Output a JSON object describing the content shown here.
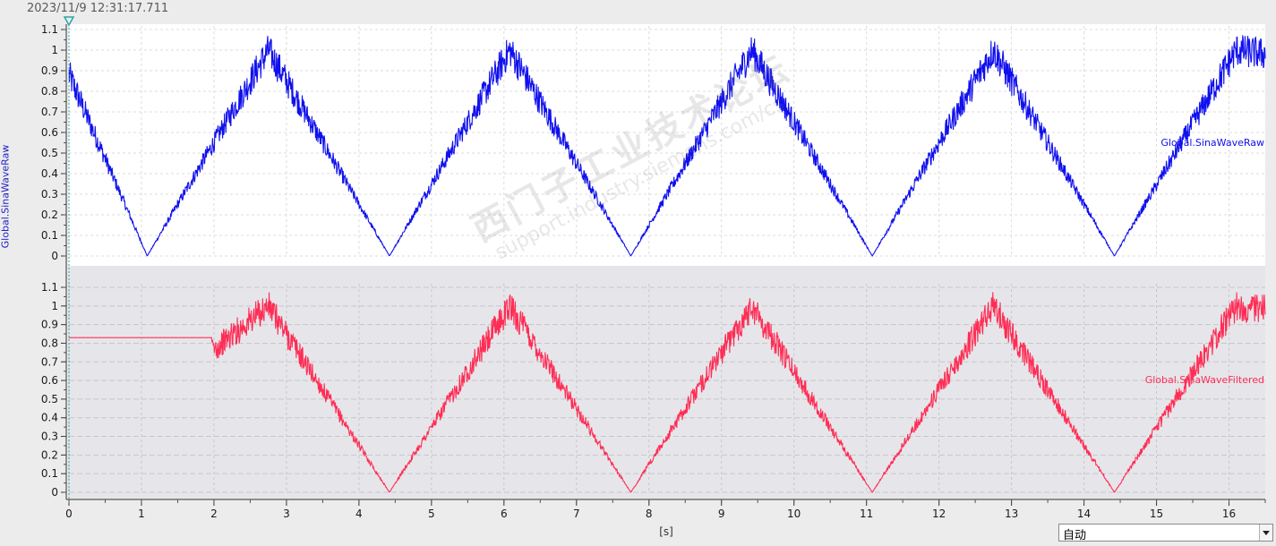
{
  "header": {
    "timestamp": "2023/11/9 12:31:17.711"
  },
  "y_axis_label": "Global.SinaWaveRaw",
  "x_axis_label": "[s]",
  "mode_selector": {
    "value": "自动"
  },
  "watermark": {
    "line1": "西门子工业技术论坛",
    "line2": "support.industry.siemens.com/cs"
  },
  "colors": {
    "raw": "#1010ee",
    "filtered": "#ff2d55",
    "top_bg": "#ffffff",
    "bottom_bg": "#e6e6ea",
    "cursor": "#2aa5a5"
  },
  "chart_data": [
    {
      "type": "line",
      "title": "",
      "xlabel": "[s]",
      "ylabel": "Global.SinaWaveRaw",
      "xlim": [
        0,
        16.5
      ],
      "ylim": [
        0,
        1.1
      ],
      "x_ticks": [
        0,
        1,
        2,
        3,
        4,
        5,
        6,
        7,
        8,
        9,
        10,
        11,
        12,
        13,
        14,
        15,
        16
      ],
      "y_ticks": [
        0,
        0.1,
        0.2,
        0.3,
        0.4,
        0.5,
        0.6,
        0.7,
        0.8,
        0.9,
        1,
        1.1
      ],
      "grid": true,
      "series": [
        {
          "name": "Global.SinaWaveRaw",
          "x": [
            0,
            1.08,
            2.75,
            4.42,
            6.08,
            7.75,
            9.42,
            11.08,
            12.75,
            14.42,
            16.1,
            16.5
          ],
          "y": [
            0.88,
            0,
            1.0,
            0,
            1.0,
            0,
            1.0,
            0,
            1.0,
            0,
            1.0,
            0.98
          ],
          "noise_amplitude": 0.08
        }
      ]
    },
    {
      "type": "line",
      "title": "",
      "xlabel": "[s]",
      "ylabel": "",
      "xlim": [
        0,
        16.5
      ],
      "ylim": [
        0,
        1.1
      ],
      "x_ticks": [
        0,
        1,
        2,
        3,
        4,
        5,
        6,
        7,
        8,
        9,
        10,
        11,
        12,
        13,
        14,
        15,
        16
      ],
      "y_ticks": [
        0,
        0.1,
        0.2,
        0.3,
        0.4,
        0.5,
        0.6,
        0.7,
        0.8,
        0.9,
        1,
        1.1
      ],
      "grid": true,
      "series": [
        {
          "name": "Global.SinaWaveFiltered",
          "x": [
            0,
            1.97,
            1.98,
            2.75,
            4.42,
            6.08,
            7.75,
            9.42,
            11.08,
            12.75,
            14.42,
            16.1,
            16.5
          ],
          "y": [
            0.83,
            0.83,
            0.76,
            1.0,
            0,
            1.0,
            0,
            1.0,
            0,
            1.0,
            0,
            1.0,
            0.98
          ],
          "noise_amplitude": 0.08,
          "noise_start_x": 1.98
        }
      ]
    }
  ]
}
